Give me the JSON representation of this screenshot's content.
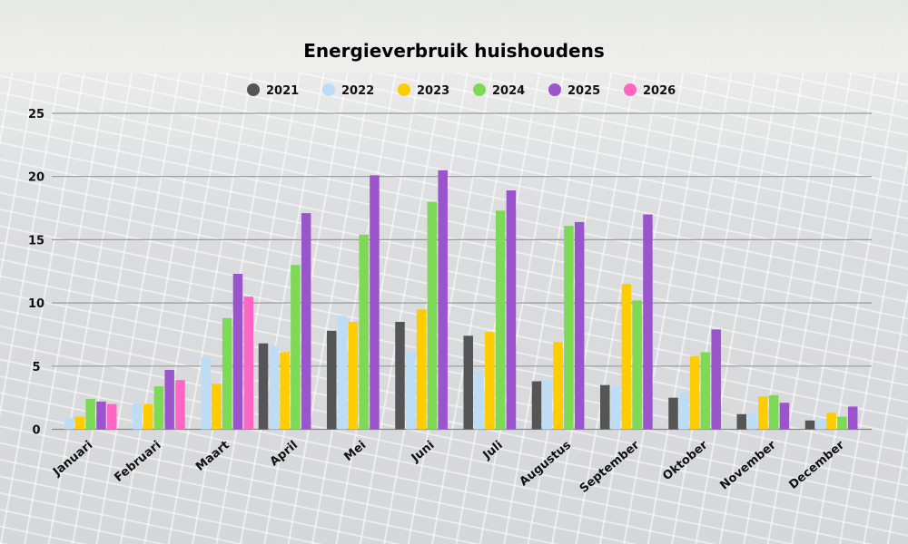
{
  "chart_data": {
    "type": "bar",
    "title": "Energieverbruik huishoudens",
    "xlabel": "",
    "ylabel": "",
    "ylim": [
      0,
      25
    ],
    "yticks": [
      0,
      5,
      10,
      15,
      20,
      25
    ],
    "grid": true,
    "legend_position": "top-center",
    "categories": [
      "Januari",
      "Februari",
      "Maart",
      "April",
      "Mei",
      "Juni",
      "Juli",
      "Augustus",
      "September",
      "Oktober",
      "November",
      "December"
    ],
    "series": [
      {
        "name": "2021",
        "color": "#555555",
        "values": [
          null,
          null,
          null,
          6.8,
          7.8,
          8.5,
          7.4,
          3.8,
          3.5,
          2.5,
          1.2,
          0.7
        ]
      },
      {
        "name": "2022",
        "color": "#bddcf6",
        "values": [
          0.9,
          2.0,
          5.7,
          6.6,
          9.0,
          6.2,
          4.6,
          3.9,
          3.4,
          2.9,
          1.3,
          0.8
        ]
      },
      {
        "name": "2023",
        "color": "#ffcc00",
        "values": [
          1.0,
          2.0,
          3.6,
          6.1,
          8.5,
          9.5,
          7.7,
          6.9,
          11.5,
          5.8,
          2.6,
          1.3
        ]
      },
      {
        "name": "2024",
        "color": "#7ed957",
        "values": [
          2.4,
          3.4,
          8.8,
          13.0,
          15.4,
          18.0,
          17.3,
          16.1,
          10.2,
          6.1,
          2.7,
          1.0
        ]
      },
      {
        "name": "2025",
        "color": "#9b55cc",
        "values": [
          2.2,
          4.7,
          12.3,
          17.1,
          20.1,
          20.5,
          18.9,
          16.4,
          17.0,
          7.9,
          2.1,
          1.8
        ]
      },
      {
        "name": "2026",
        "color": "#ff66c4",
        "values": [
          2.0,
          3.9,
          10.5,
          null,
          null,
          null,
          null,
          null,
          null,
          null,
          null,
          null
        ]
      }
    ]
  }
}
